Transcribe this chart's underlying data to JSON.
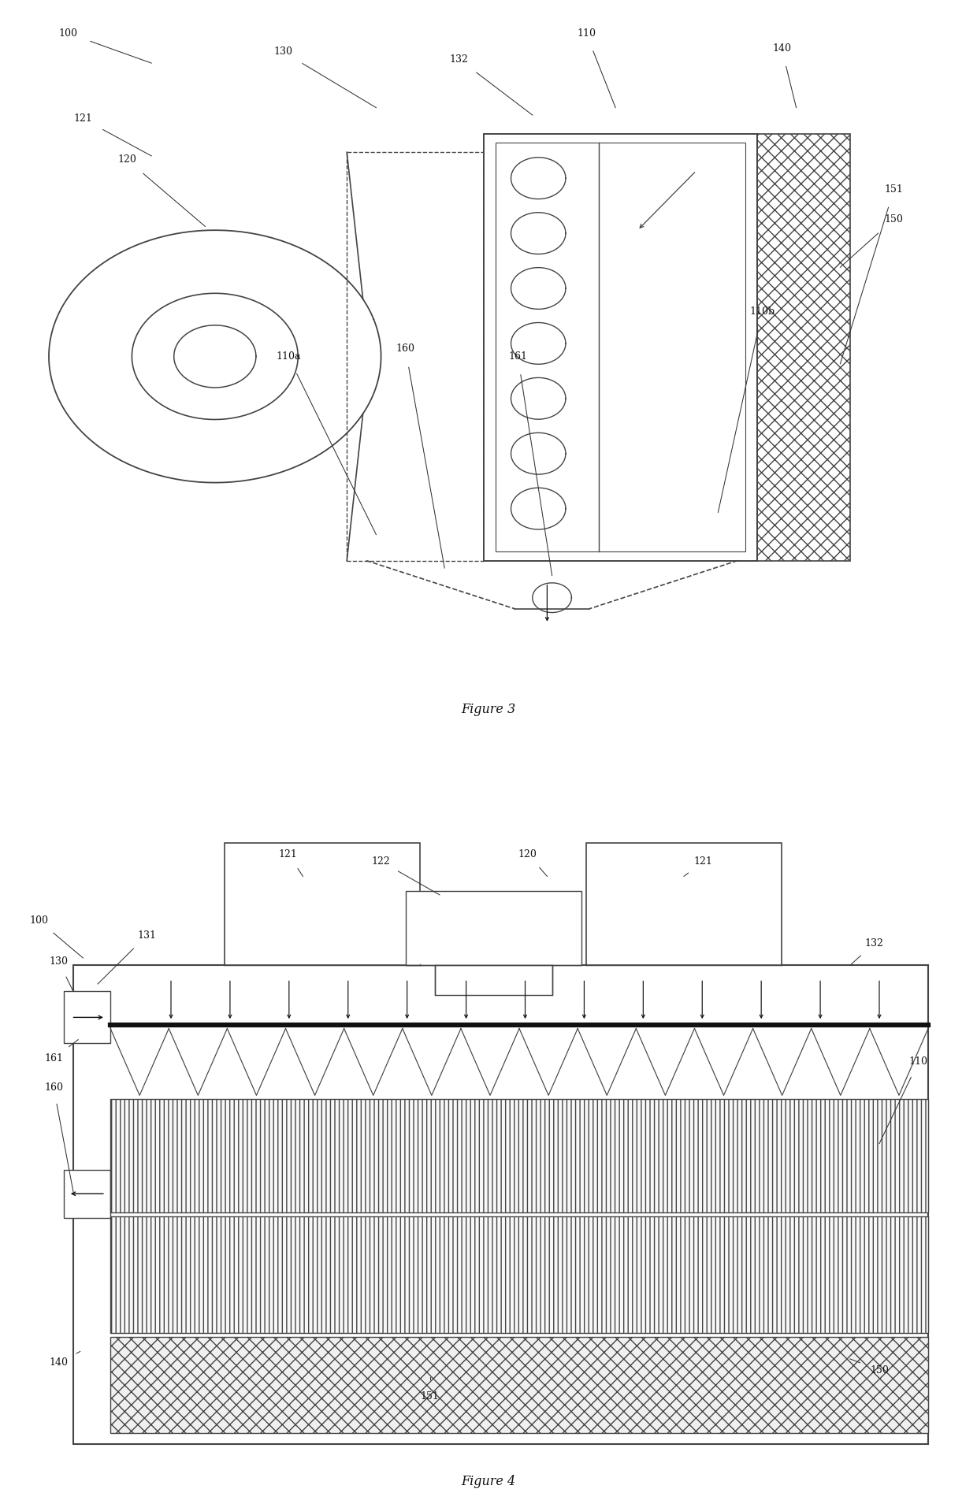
{
  "fig_width": 12.4,
  "fig_height": 19.04,
  "bg_color": "#ffffff",
  "line_color": "#444444",
  "dark_line": "#111111",
  "fig3_title": "Figure 3",
  "fig4_title": "Figure 4"
}
